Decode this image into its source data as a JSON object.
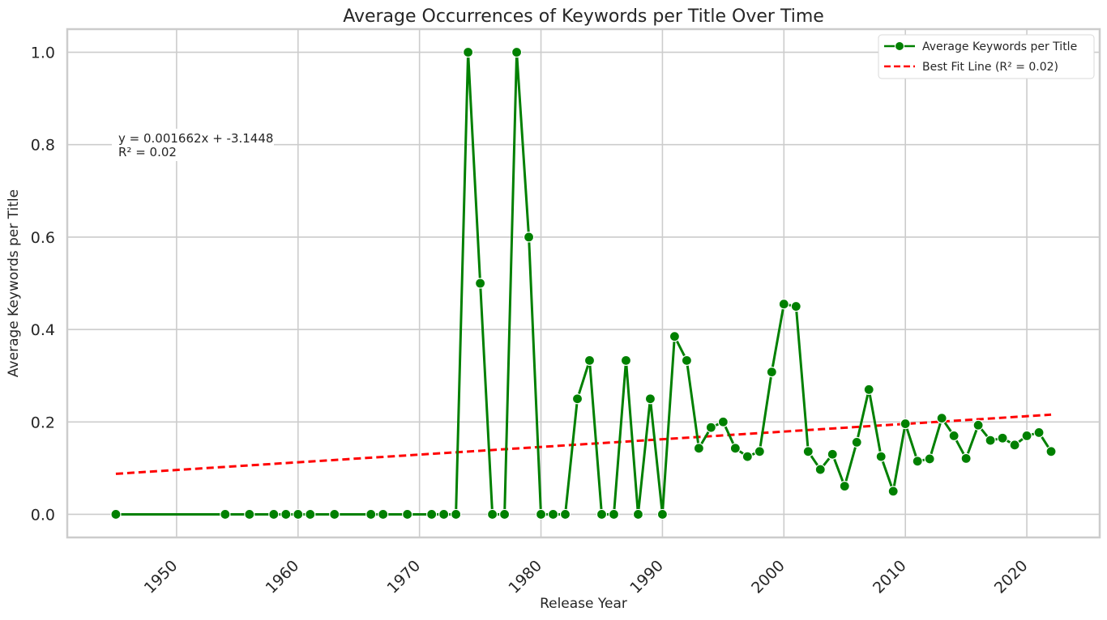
{
  "chart_data": {
    "type": "line",
    "title": "Average Occurrences of Keywords per Title Over Time",
    "xlabel": "Release Year",
    "ylabel": "Average Keywords per Title",
    "xlim": [
      1941,
      2026
    ],
    "ylim": [
      -0.05,
      1.05
    ],
    "xticks": [
      1950,
      1960,
      1970,
      1980,
      1990,
      2000,
      2010,
      2020
    ],
    "yticks": [
      "0.0",
      "0.2",
      "0.4",
      "0.6",
      "0.8",
      "1.0"
    ],
    "grid": true,
    "legend_position": "top-right",
    "series": [
      {
        "name": "Average Keywords per Title",
        "color": "#008000",
        "marker": "circle",
        "x": [
          1945,
          1954,
          1956,
          1958,
          1959,
          1960,
          1961,
          1963,
          1966,
          1967,
          1969,
          1971,
          1972,
          1973,
          1974,
          1975,
          1976,
          1977,
          1978,
          1979,
          1980,
          1981,
          1982,
          1983,
          1984,
          1985,
          1986,
          1987,
          1988,
          1989,
          1990,
          1991,
          1992,
          1993,
          1994,
          1995,
          1996,
          1997,
          1998,
          1999,
          2000,
          2001,
          2002,
          2003,
          2004,
          2005,
          2006,
          2007,
          2008,
          2009,
          2010,
          2011,
          2012,
          2013,
          2014,
          2015,
          2016,
          2017,
          2018,
          2019,
          2020,
          2021,
          2022
        ],
        "y": [
          0,
          0,
          0,
          0,
          0,
          0,
          0,
          0,
          0,
          0,
          0,
          0,
          0,
          0,
          1.0,
          0.5,
          0,
          0,
          1.0,
          0.6,
          0,
          0,
          0,
          0.25,
          0.333,
          0,
          0,
          0.333,
          0,
          0.25,
          0,
          0.385,
          0.333,
          0.143,
          0.188,
          0.2,
          0.143,
          0.125,
          0.136,
          0.308,
          0.455,
          0.45,
          0.136,
          0.097,
          0.13,
          0.061,
          0.156,
          0.27,
          0.125,
          0.05,
          0.196,
          0.115,
          0.12,
          0.208,
          0.17,
          0.121,
          0.193,
          0.16,
          0.165,
          0.15,
          0.17,
          0.177,
          0.136
        ]
      },
      {
        "name": "Best Fit Line (R² = 0.02)",
        "color": "#ff0000",
        "style": "dashed",
        "x": [
          1945,
          2022
        ],
        "y": [
          0.0877,
          0.2157
        ]
      }
    ],
    "annotation": {
      "line1": "y = 0.001662x + -3.1448",
      "line2": "R² = 0.02"
    }
  }
}
